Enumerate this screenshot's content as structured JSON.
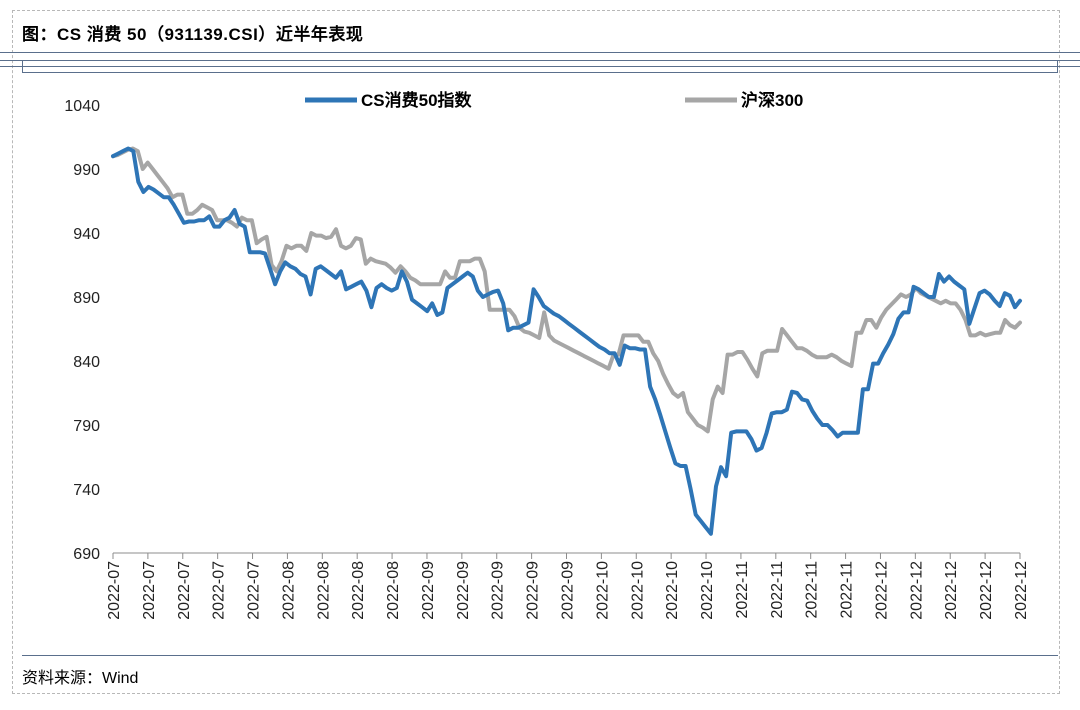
{
  "header": {
    "title": "图：CS 消费 50（931139.CSI）近半年表现"
  },
  "footer": {
    "source": "资料来源：Wind"
  },
  "chart_data": {
    "type": "line",
    "ylim": [
      690,
      1040
    ],
    "yticks": [
      1040,
      990,
      940,
      890,
      840,
      790,
      740,
      690
    ],
    "x_tick_labels": [
      "2022-07",
      "2022-07",
      "2022-07",
      "2022-07",
      "2022-07",
      "2022-08",
      "2022-08",
      "2022-08",
      "2022-08",
      "2022-09",
      "2022-09",
      "2022-09",
      "2022-09",
      "2022-09",
      "2022-10",
      "2022-10",
      "2022-10",
      "2022-10",
      "2022-11",
      "2022-11",
      "2022-11",
      "2022-11",
      "2022-12",
      "2022-12",
      "2022-12",
      "2022-12",
      "2022-12"
    ],
    "legend_position": "top",
    "colors": {
      "cs50": "#2e75b6",
      "hs300": "#a6a6a6"
    },
    "series": [
      {
        "name": "CS消费50指数",
        "color": "#2e75b6",
        "values": [
          1000,
          1002,
          1004,
          1006,
          1004,
          980,
          972,
          976,
          974,
          971,
          968,
          968,
          962,
          955,
          948,
          949,
          949,
          950,
          950,
          953,
          945,
          945,
          950,
          952,
          958,
          947,
          945,
          925,
          925,
          925,
          924,
          912,
          900,
          910,
          917,
          914,
          912,
          908,
          906,
          892,
          912,
          914,
          911,
          908,
          905,
          910,
          896,
          898,
          900,
          902,
          895,
          882,
          897,
          900,
          897,
          895,
          897,
          910,
          902,
          888,
          885,
          882,
          879,
          885,
          876,
          878,
          897,
          900,
          903,
          906,
          909,
          906,
          895,
          890,
          892,
          894,
          895,
          885,
          864,
          866,
          866,
          868,
          870,
          896,
          890,
          883,
          880,
          877,
          875,
          872,
          869,
          866,
          863,
          860,
          857,
          854,
          851,
          849,
          846,
          846,
          837,
          852,
          850,
          850,
          849,
          849,
          820,
          810,
          798,
          785,
          772,
          760,
          758,
          758,
          740,
          720,
          715,
          710,
          705,
          742,
          757,
          750,
          784,
          785,
          785,
          785,
          779,
          770,
          772,
          784,
          799,
          800,
          800,
          802,
          816,
          815,
          810,
          809,
          801,
          795,
          790,
          790,
          786,
          781,
          784,
          784,
          784,
          784,
          818,
          818,
          838,
          838,
          846,
          853,
          861,
          873,
          878,
          878,
          898,
          896,
          893,
          890,
          890,
          908,
          902,
          906,
          902,
          899,
          896,
          869,
          881,
          893,
          895,
          892,
          887,
          883,
          893,
          891,
          882,
          887
        ]
      },
      {
        "name": "沪深300",
        "color": "#a6a6a6",
        "values": [
          1000,
          1001,
          1003,
          1005,
          1006,
          1004,
          990,
          995,
          990,
          985,
          980,
          975,
          968,
          970,
          970,
          955,
          955,
          958,
          962,
          960,
          958,
          950,
          950,
          950,
          948,
          945,
          952,
          950,
          950,
          932,
          935,
          937,
          915,
          910,
          918,
          930,
          928,
          930,
          930,
          926,
          940,
          938,
          938,
          936,
          937,
          943,
          930,
          928,
          930,
          936,
          935,
          916,
          920,
          918,
          917,
          916,
          913,
          909,
          914,
          910,
          905,
          903,
          900,
          900,
          900,
          900,
          900,
          910,
          905,
          905,
          918,
          918,
          918,
          920,
          920,
          910,
          880,
          880,
          880,
          880,
          880,
          875,
          866,
          863,
          862,
          860,
          858,
          878,
          860,
          856,
          854,
          852,
          850,
          848,
          846,
          844,
          842,
          840,
          838,
          836,
          834,
          845,
          845,
          860,
          860,
          860,
          860,
          855,
          855,
          846,
          840,
          830,
          822,
          815,
          812,
          815,
          800,
          795,
          790,
          788,
          785,
          810,
          820,
          815,
          845,
          845,
          847,
          847,
          841,
          834,
          828,
          846,
          848,
          848,
          848,
          865,
          860,
          855,
          850,
          850,
          848,
          845,
          843,
          843,
          843,
          845,
          843,
          840,
          838,
          836,
          862,
          862,
          872,
          872,
          866,
          874,
          880,
          884,
          888,
          892,
          890,
          892,
          897,
          893,
          891,
          889,
          887,
          885,
          887,
          885,
          885,
          880,
          872,
          860,
          860,
          862,
          860,
          861,
          862,
          862,
          872,
          868,
          866,
          870
        ]
      }
    ]
  }
}
